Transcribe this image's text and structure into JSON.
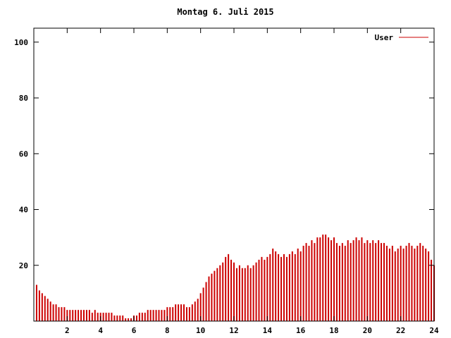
{
  "title": "Montag 6. Juli 2015",
  "legend": {
    "label": "User",
    "color": "#cc0000"
  },
  "colors": {
    "axis": "#000000",
    "background": "#ffffff",
    "series": "#cc0000"
  },
  "chart_data": {
    "type": "bar",
    "title": "Montag 6. Juli 2015",
    "xlabel": "",
    "ylabel": "",
    "xlim": [
      0,
      24
    ],
    "ylim": [
      0,
      105
    ],
    "x_ticks": [
      2,
      4,
      6,
      8,
      10,
      12,
      14,
      16,
      18,
      20,
      22,
      24
    ],
    "y_ticks": [
      20,
      40,
      60,
      80,
      100
    ],
    "grid": false,
    "legend_position": "top-right",
    "x_step_minutes": 10,
    "series": [
      {
        "name": "User",
        "color": "#cc0000",
        "values": [
          13,
          11,
          10,
          9,
          8,
          7,
          6,
          6,
          5,
          5,
          5,
          4,
          4,
          4,
          4,
          4,
          4,
          4,
          4,
          4,
          3,
          4,
          3,
          3,
          3,
          3,
          3,
          3,
          2,
          2,
          2,
          2,
          1,
          1,
          1,
          2,
          2,
          3,
          3,
          3,
          4,
          4,
          4,
          4,
          4,
          4,
          4,
          5,
          5,
          5,
          6,
          6,
          6,
          6,
          5,
          5,
          6,
          7,
          8,
          10,
          12,
          14,
          16,
          17,
          18,
          19,
          20,
          21,
          23,
          24,
          22,
          21,
          19,
          20,
          19,
          19,
          20,
          19,
          20,
          21,
          22,
          23,
          22,
          23,
          24,
          26,
          25,
          24,
          23,
          24,
          23,
          24,
          25,
          24,
          26,
          25,
          27,
          28,
          27,
          29,
          28,
          30,
          30,
          31,
          31,
          30,
          29,
          30,
          28,
          27,
          28,
          27,
          29,
          28,
          29,
          30,
          29,
          30,
          28,
          29,
          28,
          29,
          28,
          29,
          28,
          28,
          27,
          26,
          27,
          25,
          26,
          27,
          26,
          27,
          28,
          27,
          26,
          27,
          28,
          27,
          26,
          25,
          22,
          20
        ]
      }
    ]
  }
}
